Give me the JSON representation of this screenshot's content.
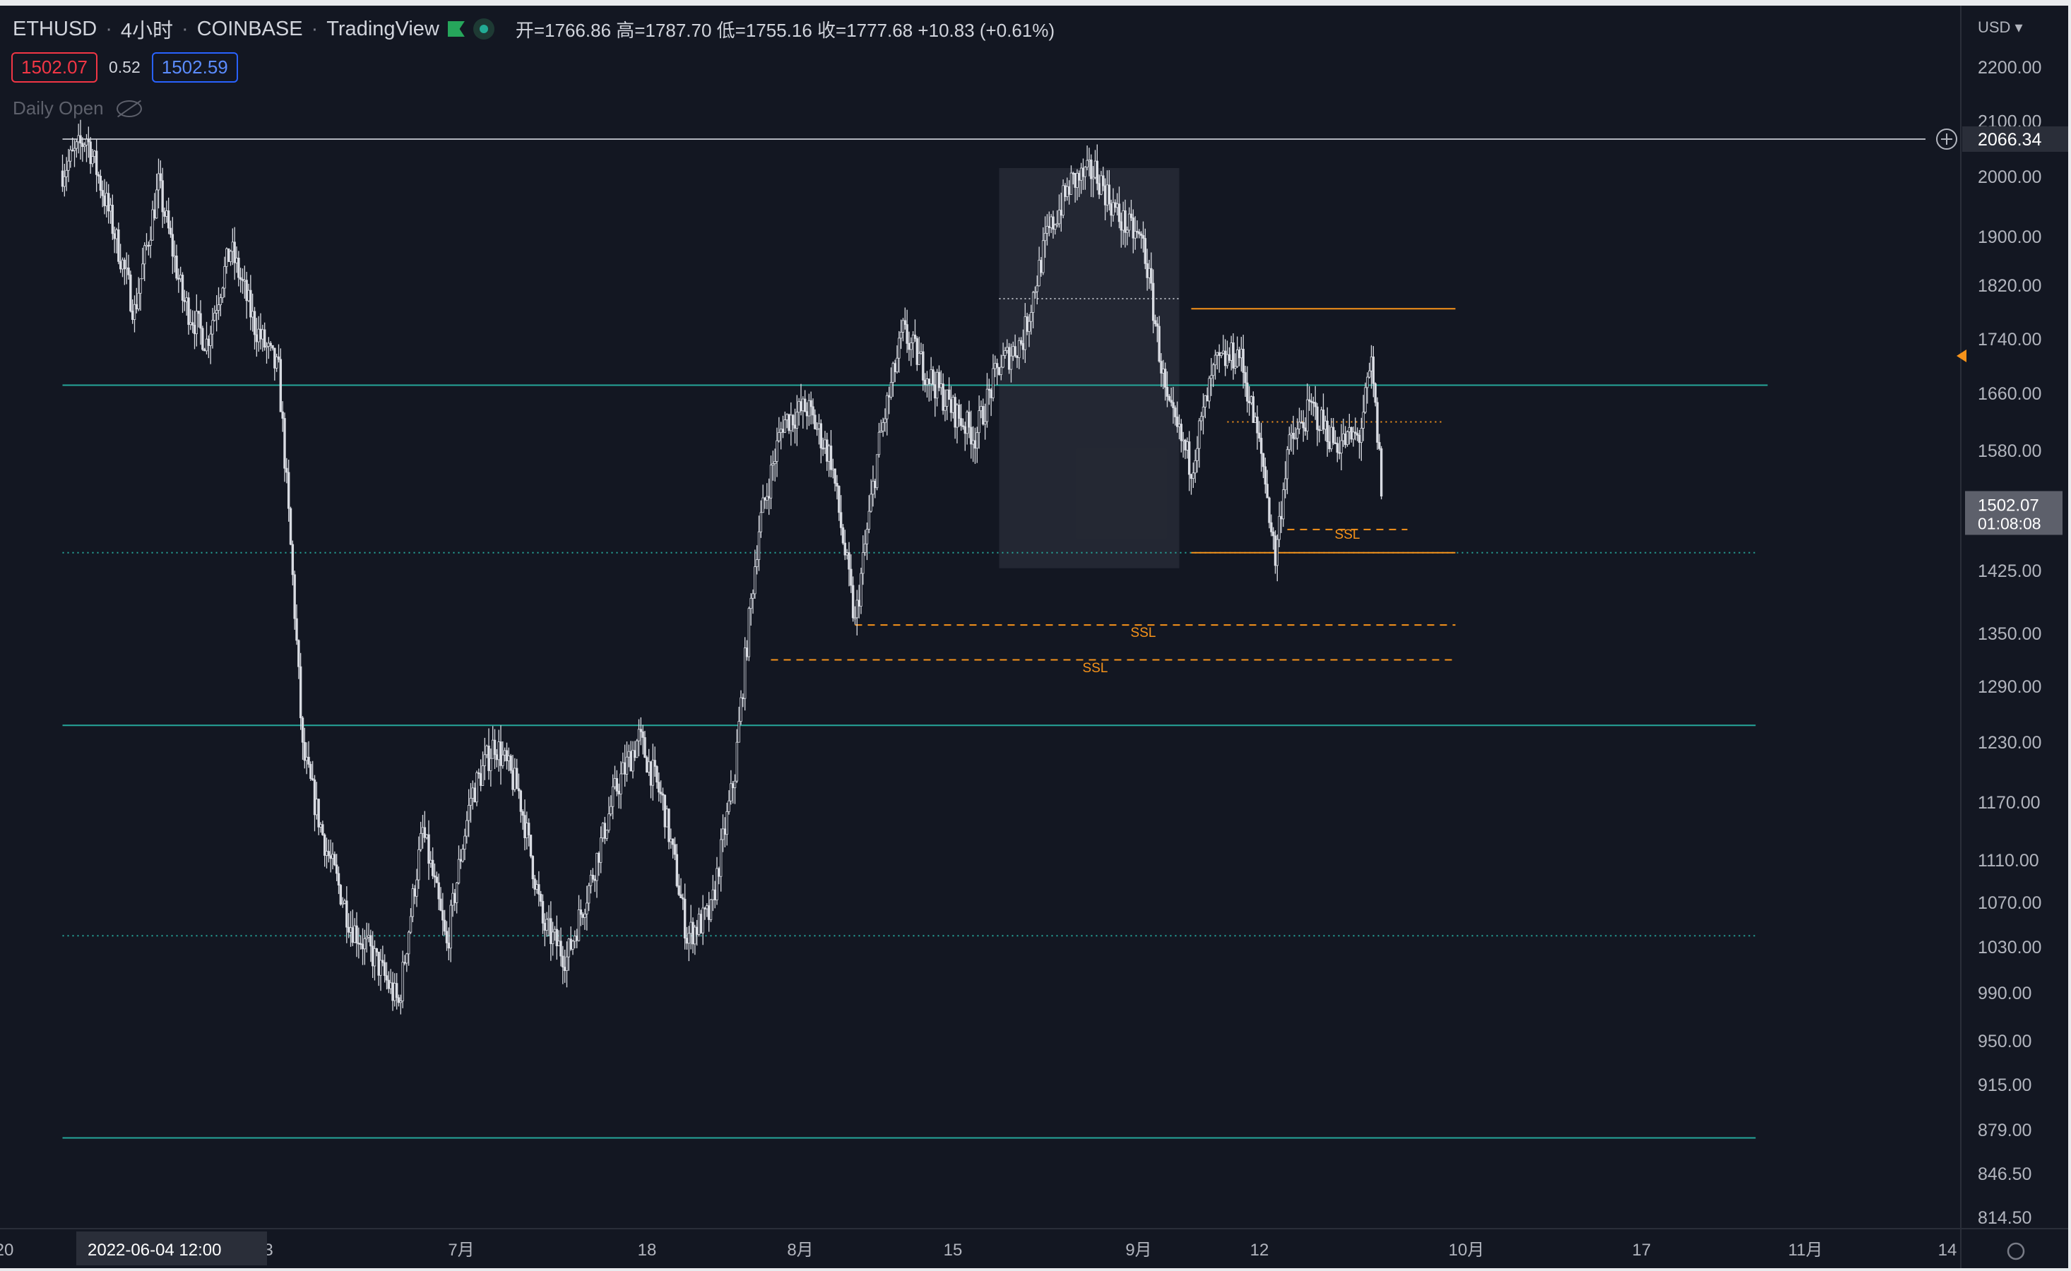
{
  "header": {
    "symbol": "ETHUSD",
    "interval": "4小时",
    "exchange": "COINBASE",
    "source": "TradingView",
    "ohlc": "开=1766.86 高=1787.70 低=1755.16 收=1777.68 +10.83 (+0.61%)",
    "bid": "1502.07",
    "spread": "0.52",
    "ask": "1502.59",
    "indicator": "Daily Open",
    "flag_icon": "green-flag-icon",
    "status_icon": "market-open-dot-icon",
    "visibility_icon": "eye-hidden-icon"
  },
  "colors": {
    "background": "#131722",
    "candle": "#d9dce3",
    "level_teal": "#26a69a",
    "level_orange": "#f7931a",
    "range_box": "#2a2e39"
  },
  "chart_data": {
    "type": "candlestick",
    "currency_label": "USD",
    "y_ticks": [
      "2200.00",
      "2100.00",
      "2000.00",
      "1900.00",
      "1820.00",
      "1740.00",
      "1660.00",
      "1580.00",
      "1425.00",
      "1350.00",
      "1290.00",
      "1230.00",
      "1170.00",
      "1110.00",
      "1070.00",
      "1030.00",
      "990.00",
      "950.00",
      "915.00",
      "879.00",
      "846.50",
      "814.50"
    ],
    "x_ticks": [
      "20",
      "3",
      "7月",
      "18",
      "8月",
      "15",
      "9月",
      "12",
      "10月",
      "17",
      "11月",
      "14"
    ],
    "crosshair": {
      "price": "2066.34",
      "date": "2022-06-04",
      "time": "12:00"
    },
    "last_price": {
      "price": "1502.07",
      "countdown": "01:08:08"
    },
    "price_path": [
      [
        "05-30",
        2010
      ],
      [
        "06-01",
        2070
      ],
      [
        "06-03",
        1930
      ],
      [
        "06-05",
        1780
      ],
      [
        "06-07",
        1985
      ],
      [
        "06-09",
        1800
      ],
      [
        "06-11",
        1735
      ],
      [
        "06-13",
        1880
      ],
      [
        "06-15",
        1760
      ],
      [
        "06-17",
        1690
      ],
      [
        "06-19",
        1220
      ],
      [
        "06-21",
        1120
      ],
      [
        "06-23",
        1050
      ],
      [
        "06-25",
        1020
      ],
      [
        "06-27",
        980
      ],
      [
        "06-29",
        1140
      ],
      [
        "07-01",
        1030
      ],
      [
        "07-03",
        1175
      ],
      [
        "07-05",
        1230
      ],
      [
        "07-07",
        1180
      ],
      [
        "07-09",
        1050
      ],
      [
        "07-11",
        1020
      ],
      [
        "07-13",
        1090
      ],
      [
        "07-15",
        1180
      ],
      [
        "07-17",
        1235
      ],
      [
        "07-19",
        1170
      ],
      [
        "07-21",
        1040
      ],
      [
        "07-23",
        1060
      ],
      [
        "07-25",
        1200
      ],
      [
        "07-27",
        1480
      ],
      [
        "07-29",
        1620
      ],
      [
        "07-31",
        1640
      ],
      [
        "08-02",
        1570
      ],
      [
        "08-04",
        1360
      ],
      [
        "08-06",
        1590
      ],
      [
        "08-08",
        1750
      ],
      [
        "08-10",
        1690
      ],
      [
        "08-12",
        1640
      ],
      [
        "08-14",
        1600
      ],
      [
        "08-16",
        1700
      ],
      [
        "08-18",
        1740
      ],
      [
        "08-20",
        1900
      ],
      [
        "08-22",
        1990
      ],
      [
        "08-24",
        2010
      ],
      [
        "08-26",
        1930
      ],
      [
        "08-28",
        1890
      ],
      [
        "08-30",
        1640
      ],
      [
        "09-01",
        1560
      ],
      [
        "09-03",
        1700
      ],
      [
        "09-05",
        1720
      ],
      [
        "09-07",
        1560
      ],
      [
        "09-08",
        1440
      ],
      [
        "09-09",
        1580
      ],
      [
        "09-11",
        1640
      ],
      [
        "09-13",
        1590
      ],
      [
        "09-15",
        1600
      ],
      [
        "09-16",
        1700
      ],
      [
        "09-17",
        1502.07
      ]
    ],
    "levels": [
      {
        "kind": "teal_solid",
        "price": 2066.34,
        "from": "05-30",
        "to": "end"
      },
      {
        "kind": "teal_solid",
        "price": 1672,
        "from": "05-30",
        "to": "10-19"
      },
      {
        "kind": "teal_dotted",
        "price": 1448,
        "from": "05-30",
        "to": "10-18"
      },
      {
        "kind": "teal_solid",
        "price": 1248,
        "from": "05-30",
        "to": "10-18"
      },
      {
        "kind": "teal_dotted",
        "price": 1040,
        "from": "05-30",
        "to": "10-18"
      },
      {
        "kind": "teal_solid",
        "price": 873,
        "from": "05-30",
        "to": "10-18"
      },
      {
        "kind": "orange_solid",
        "price": 1785,
        "from": "09-01",
        "to": "09-23"
      },
      {
        "kind": "orange_dotted",
        "price": 1620,
        "from": "09-04",
        "to": "09-22"
      },
      {
        "kind": "orange_solid",
        "price": 1448,
        "from": "09-01",
        "to": "09-23"
      },
      {
        "kind": "orange_dashed",
        "price": 1478,
        "from": "09-09",
        "to": "09-19"
      },
      {
        "kind": "orange_dashed",
        "price": 1360,
        "from": "08-04",
        "to": "09-23"
      },
      {
        "kind": "orange_dashed",
        "price": 1320,
        "from": "07-28",
        "to": "09-23"
      }
    ],
    "labels": [
      {
        "text": "SSL",
        "price": 1466,
        "date": "09-14"
      },
      {
        "text": "SSL",
        "price": 1346,
        "date": "08-28"
      },
      {
        "text": "SSL",
        "price": 1306,
        "date": "08-24"
      }
    ],
    "range_box": {
      "from": "08-16",
      "to": "08-31",
      "top": 2015,
      "bottom": 1428
    },
    "box_top_dotted": {
      "price": 1800,
      "from": "08-16",
      "to": "08-31"
    }
  }
}
